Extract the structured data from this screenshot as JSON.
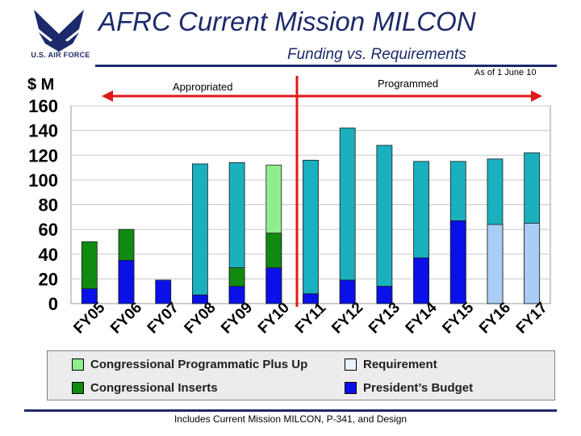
{
  "header": {
    "logo_text": "U.S. AIR FORCE",
    "title": "AFRC Current Mission MILCON",
    "subtitle": "Funding vs. Requirements",
    "as_of": "As of 1 June 10"
  },
  "chart_data": {
    "type": "bar",
    "title": "AFRC Current Mission MILCON Funding vs. Requirements",
    "ylabel": "$ M",
    "xlabel": "",
    "ylim": [
      0,
      160
    ],
    "yticks": [
      0,
      20,
      40,
      60,
      80,
      100,
      120,
      140,
      160
    ],
    "categories": [
      "FY05",
      "FY06",
      "FY07",
      "FY08",
      "FY09",
      "FY10",
      "FY11",
      "FY12",
      "FY13",
      "FY14",
      "FY15",
      "FY16",
      "FY17"
    ],
    "stacking": "overlay",
    "series": [
      {
        "name": "Requirement",
        "values": [
          null,
          null,
          null,
          113,
          114,
          null,
          116,
          142,
          128,
          115,
          115,
          117,
          122
        ]
      },
      {
        "name": "Congressional Programmatic Plus Up",
        "values": [
          null,
          null,
          null,
          null,
          null,
          112,
          null,
          null,
          null,
          null,
          null,
          null,
          null
        ]
      },
      {
        "name": "Congressional Inserts",
        "values": [
          50,
          60,
          null,
          null,
          29,
          57,
          null,
          null,
          null,
          null,
          null,
          null,
          null
        ]
      },
      {
        "name": "President's Budget",
        "values": [
          12,
          35,
          19,
          7,
          14,
          29,
          8,
          19,
          14,
          37,
          67,
          64,
          65
        ]
      }
    ],
    "annotations": {
      "appropriated_label": "Appropriated",
      "programmed_label": "Programmed"
    },
    "legend": [
      {
        "label": "Congressional Programmatic Plus Up",
        "color": "#90ee90"
      },
      {
        "label": "Requirement",
        "color": "#e8f2f8"
      },
      {
        "label": "Congressional Inserts",
        "color": "#118a11"
      },
      {
        "label": "President’s Budget",
        "color": "#0a10e8"
      }
    ]
  },
  "colors": {
    "requirement": "#1ab0be",
    "plus_up": "#90ee90",
    "inserts": "#118a11",
    "presidents_budget": "#0a10e8",
    "light_pb": "#a9cdf5",
    "arrow": "#e01818",
    "navy": "#1c2a6b"
  },
  "footer": {
    "note": "Includes Current Mission MILCON, P-341, and Design"
  }
}
